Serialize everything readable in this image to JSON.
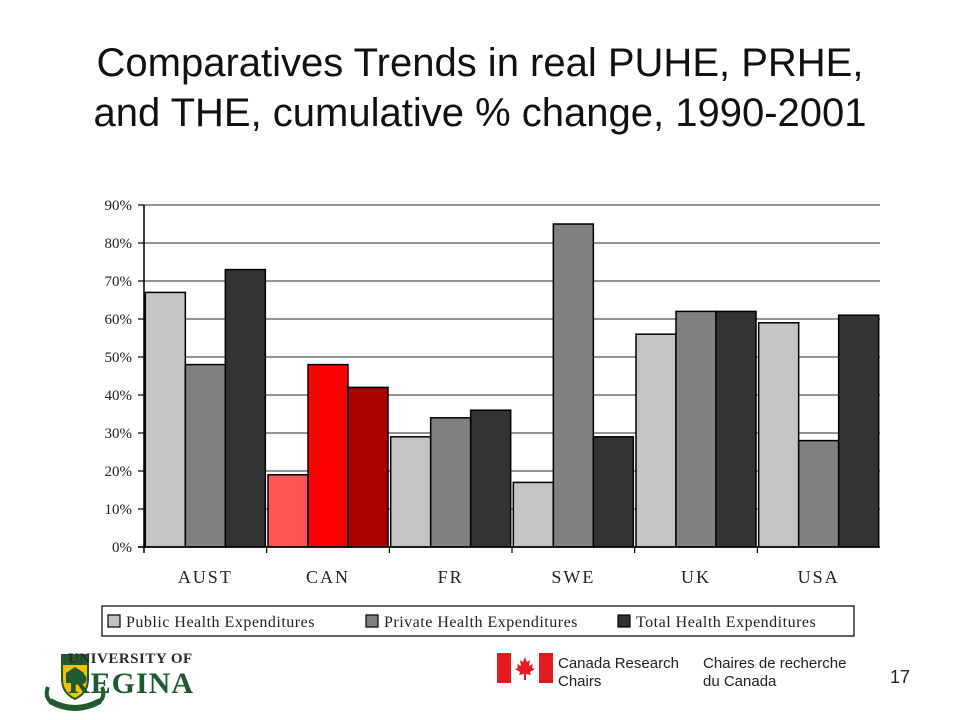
{
  "slide": {
    "title_line1": "Comparatives Trends in real PUHE, PRHE,",
    "title_line2": "and THE, cumulative % change, 1990-2001",
    "page_number": "17"
  },
  "chart_data": {
    "type": "bar",
    "categories": [
      "AUST",
      "CAN",
      "FR",
      "SWE",
      "UK",
      "USA"
    ],
    "series": [
      {
        "name": "Public Health Expenditures",
        "values": [
          67,
          19,
          29,
          17,
          56,
          59
        ]
      },
      {
        "name": "Private Health Expenditures",
        "values": [
          48,
          48,
          34,
          85,
          62,
          28
        ]
      },
      {
        "name": "Total Health Expenditures",
        "values": [
          73,
          42,
          36,
          29,
          62,
          61
        ]
      }
    ],
    "ylim": [
      0,
      90
    ],
    "yticks": [
      0,
      10,
      20,
      30,
      40,
      50,
      60,
      70,
      80,
      90
    ],
    "ytick_labels": [
      "0%",
      "10%",
      "20%",
      "30%",
      "40%",
      "50%",
      "60%",
      "70%",
      "80%",
      "90%"
    ],
    "grid": true,
    "legend_position": "bottom",
    "series_colors": [
      "#c4c4c4",
      "#808080",
      "#333333"
    ],
    "highlight_category": "CAN",
    "highlight_colors": [
      "#ff5555",
      "#ff0000",
      "#aa0000"
    ]
  },
  "footer": {
    "university_line1": "UNIVERSITY OF",
    "university_line2": "REGINA",
    "crc_en_line1": "Canada Research",
    "crc_en_line2": "Chairs",
    "crc_fr_line1": "Chaires de recherche",
    "crc_fr_line2": "du Canada"
  }
}
